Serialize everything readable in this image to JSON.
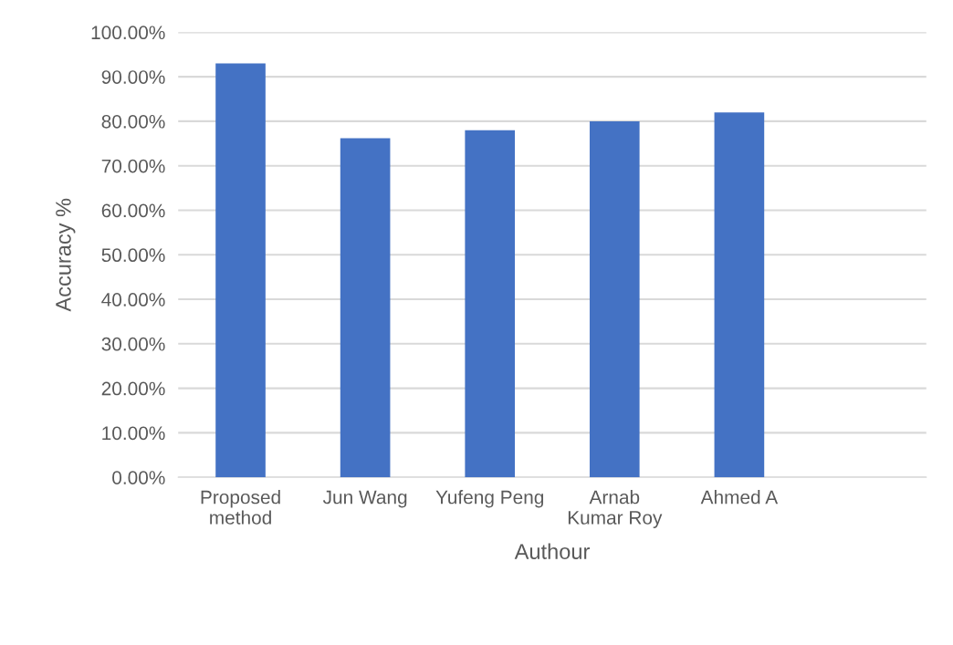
{
  "chart_data": {
    "type": "bar",
    "xlabel": "Authour",
    "ylabel": "Accuracy %",
    "categories": [
      "Proposed\nmethod",
      "Jun Wang",
      "Yufeng Peng",
      "Arnab\nKumar Roy",
      "Ahmed A",
      null
    ],
    "values": [
      93,
      76.2,
      78,
      80,
      82,
      null
    ],
    "color": "#4472c4",
    "ylim": [
      0,
      100
    ],
    "yticks": [
      {
        "value": 0,
        "label": "0.00%"
      },
      {
        "value": 10,
        "label": "10.00%"
      },
      {
        "value": 20,
        "label": "20.00%"
      },
      {
        "value": 30,
        "label": "30.00%"
      },
      {
        "value": 40,
        "label": "40.00%"
      },
      {
        "value": 50,
        "label": "50.00%"
      },
      {
        "value": 60,
        "label": "60.00%"
      },
      {
        "value": 70,
        "label": "70.00%"
      },
      {
        "value": 80,
        "label": "80.00%"
      },
      {
        "value": 90,
        "label": "90.00%"
      },
      {
        "value": 100,
        "label": "100.00%"
      }
    ],
    "grid": "y",
    "legend": false
  }
}
